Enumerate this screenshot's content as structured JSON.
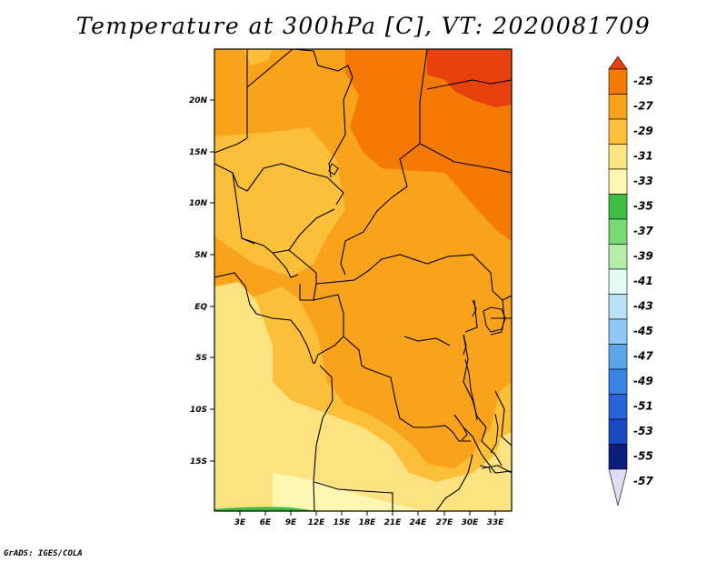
{
  "title": "Temperature at 300hPa [C], VT: 2020081709",
  "credit": "GrADS: IGES/COLA",
  "lat_labels": [
    "20N",
    "15N",
    "10N",
    "5N",
    "EQ",
    "5S",
    "10S",
    "15S"
  ],
  "lon_labels": [
    "3E",
    "6E",
    "9E",
    "12E",
    "15E",
    "18E",
    "21E",
    "24E",
    "27E",
    "30E",
    "33E"
  ],
  "colorbar": {
    "labels": [
      "-25",
      "-27",
      "-29",
      "-31",
      "-33",
      "-35",
      "-37",
      "-39",
      "-41",
      "-43",
      "-45",
      "-47",
      "-49",
      "-51",
      "-53",
      "-55",
      "-57"
    ],
    "colors": [
      "#e8400c",
      "#f47a05",
      "#f9a21c",
      "#fbbf3a",
      "#fde282",
      "#fef7b3",
      "#3cbd41",
      "#78d873",
      "#b4eda9",
      "#e2fbf3",
      "#b9e2f6",
      "#8fc8f2",
      "#5aa5ec",
      "#3a83e3",
      "#2664d8",
      "#1a49c2",
      "#0c1d80",
      "#e0dcf4"
    ]
  },
  "field_colors": {
    "c25": "#e8400c",
    "c27": "#f47a05",
    "c29": "#f9a21c",
    "c31": "#fbbf3a",
    "c33": "#fde282",
    "c35": "#fef7b3",
    "c37": "#3cbd41"
  }
}
